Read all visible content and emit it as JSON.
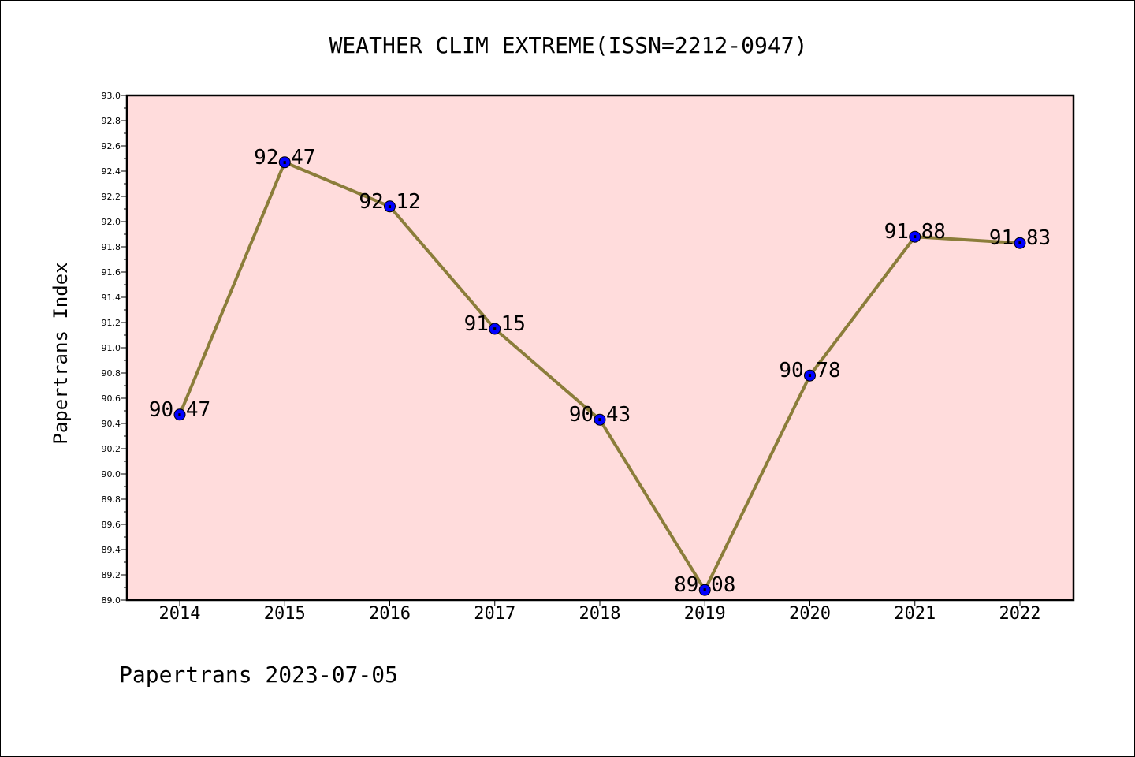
{
  "chart_data": {
    "type": "line",
    "title": "WEATHER CLIM EXTREME(ISSN=2212-0947)",
    "xlabel": "",
    "ylabel": "Papertrans Index",
    "categories": [
      "2014",
      "2015",
      "2016",
      "2017",
      "2018",
      "2019",
      "2020",
      "2021",
      "2022"
    ],
    "series": [
      {
        "values": [
          90.47,
          92.47,
          92.12,
          91.15,
          90.43,
          89.08,
          90.78,
          91.88,
          91.83
        ],
        "labels": [
          "90.47",
          "92.47",
          "92.12",
          "91.15",
          "90.43",
          "89.08",
          "90.78",
          "91.88",
          "91.83"
        ],
        "line_color": "#8b7d3a",
        "marker_color": "#0000ff"
      }
    ],
    "ylim": [
      89.0,
      93.0
    ],
    "yticks": [
      "89.0",
      "89.2",
      "89.4",
      "89.6",
      "89.8",
      "90.0",
      "90.2",
      "90.4",
      "90.6",
      "90.8",
      "91.0",
      "91.2",
      "91.4",
      "91.6",
      "91.8",
      "92.0",
      "92.2",
      "92.4",
      "92.6",
      "92.8",
      "93.0"
    ],
    "grid": false,
    "plot_background": "#ffdcdc"
  },
  "footer": "Papertrans 2023-07-05"
}
